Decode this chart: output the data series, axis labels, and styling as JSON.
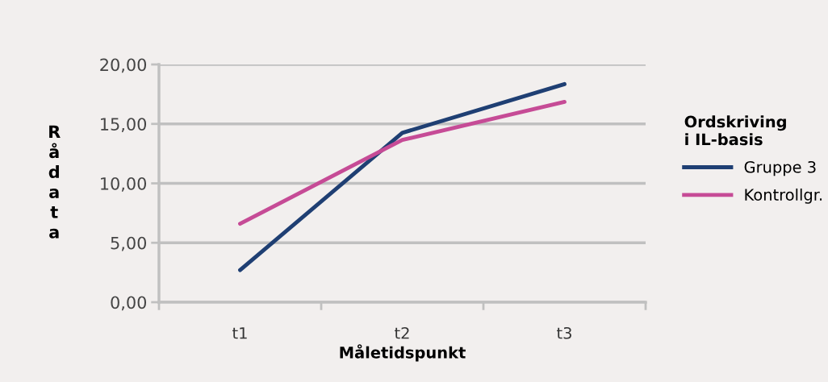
{
  "chart_data": {
    "type": "line",
    "xlabel": "Måletidspunkt",
    "ylabel": "Rådata",
    "legend_title": "Ordskriving\ni IL-basis",
    "categories": [
      "t1",
      "t2",
      "t3"
    ],
    "series": [
      {
        "name": "Gruppe 3",
        "color": "#1f3f73",
        "values": [
          2.7,
          14.25,
          18.35
        ]
      },
      {
        "name": "Kontrollgr.",
        "color": "#c64b96",
        "values": [
          6.6,
          13.65,
          16.85
        ]
      }
    ],
    "ylim": [
      0,
      20
    ],
    "yticks": [
      {
        "value": 0,
        "label": "0,00"
      },
      {
        "value": 5,
        "label": "5,00"
      },
      {
        "value": 10,
        "label": "10,00"
      },
      {
        "value": 15,
        "label": "15,00"
      },
      {
        "value": 20,
        "label": "20,00"
      }
    ],
    "grid": "y",
    "legend": "right",
    "marker": "none",
    "line_style": "solid"
  }
}
